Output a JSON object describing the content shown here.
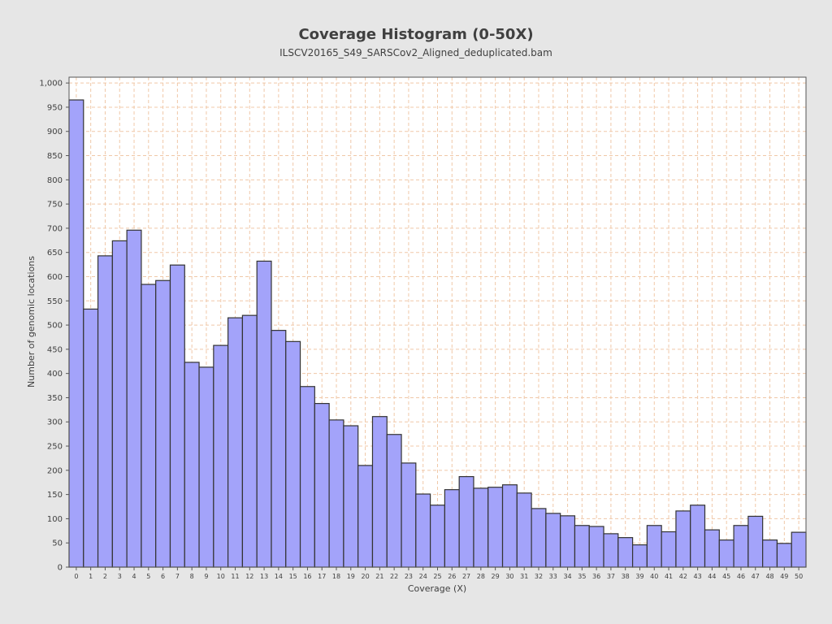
{
  "chart_data": {
    "type": "bar",
    "title": "Coverage Histogram (0-50X)",
    "subtitle": "ILSCV20165_S49_SARSCov2_Aligned_deduplicated.bam",
    "xlabel": "Coverage (X)",
    "ylabel": "Number of genomic locations",
    "categories": [
      "0",
      "1",
      "2",
      "3",
      "4",
      "5",
      "6",
      "7",
      "8",
      "9",
      "10",
      "11",
      "12",
      "13",
      "14",
      "15",
      "16",
      "17",
      "18",
      "19",
      "20",
      "21",
      "22",
      "23",
      "24",
      "25",
      "26",
      "27",
      "28",
      "29",
      "30",
      "31",
      "32",
      "33",
      "34",
      "35",
      "36",
      "37",
      "38",
      "39",
      "40",
      "41",
      "42",
      "43",
      "44",
      "45",
      "46",
      "47",
      "48",
      "49",
      "50"
    ],
    "values": [
      965,
      533,
      643,
      674,
      696,
      584,
      592,
      624,
      423,
      413,
      458,
      515,
      520,
      632,
      489,
      466,
      373,
      338,
      304,
      292,
      210,
      311,
      274,
      215,
      151,
      128,
      160,
      187,
      163,
      165,
      170,
      153,
      121,
      111,
      106,
      86,
      84,
      69,
      61,
      46,
      86,
      73,
      116,
      128,
      77,
      56,
      86,
      105,
      56,
      49,
      72
    ],
    "ylim": [
      0,
      1012
    ],
    "yticks": [
      0,
      50,
      100,
      150,
      200,
      250,
      300,
      350,
      400,
      450,
      500,
      550,
      600,
      650,
      700,
      750,
      800,
      850,
      900,
      950,
      1000
    ],
    "ytick_labels": [
      "0",
      "50",
      "100",
      "150",
      "200",
      "250",
      "300",
      "350",
      "400",
      "450",
      "500",
      "550",
      "600",
      "650",
      "700",
      "750",
      "800",
      "850",
      "900",
      "950",
      "1,000"
    ],
    "grid": true,
    "colors": {
      "bar_fill": "#a3a3fa",
      "bar_stroke": "#333333",
      "grid": "#f0c8a8",
      "plot_bg": "#ffffff",
      "page_bg": "#e6e6e6"
    }
  }
}
